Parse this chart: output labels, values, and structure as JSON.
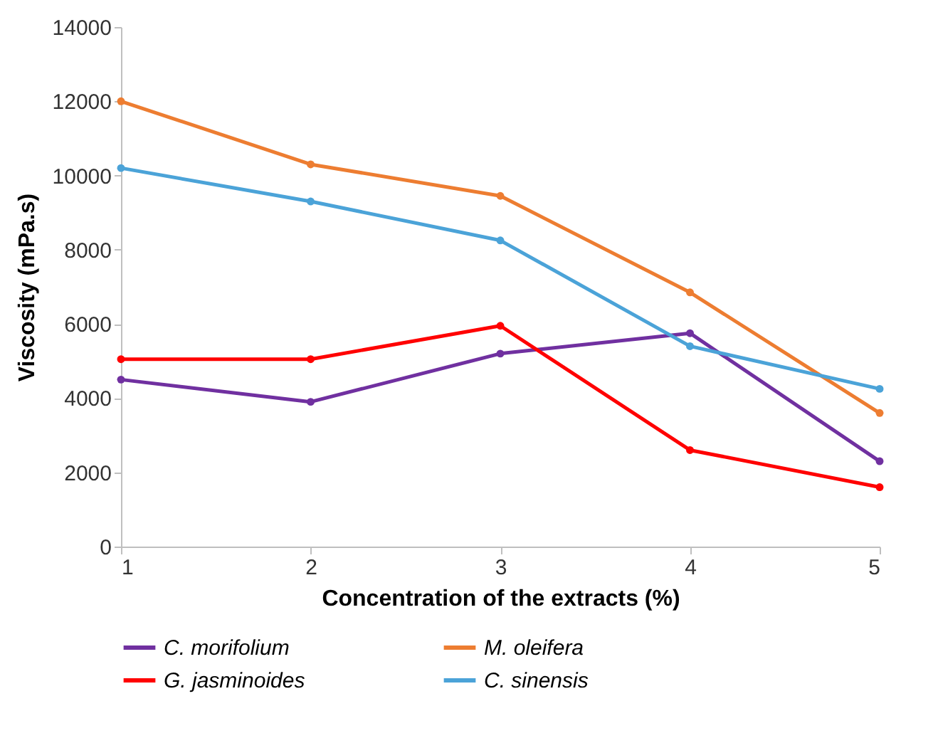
{
  "chart_data": {
    "type": "line",
    "xlabel": "Concentration of the extracts (%)",
    "ylabel": "Viscosity (mPa.s)",
    "x": [
      1,
      2,
      3,
      4,
      5
    ],
    "xlim": [
      1,
      5
    ],
    "xticks": [
      1,
      2,
      3,
      4,
      5
    ],
    "ylim": [
      0,
      14000
    ],
    "yticks": [
      0,
      2000,
      4000,
      6000,
      8000,
      10000,
      12000,
      14000
    ],
    "series": [
      {
        "name": "C. morifolium",
        "color": "#7030a0",
        "values": [
          4500,
          3900,
          5200,
          5750,
          2300
        ]
      },
      {
        "name": "M. oleifera",
        "color": "#ed7d31",
        "values": [
          12000,
          10300,
          9450,
          6850,
          3600
        ]
      },
      {
        "name": "G. jasminoides",
        "color": "#ff0000",
        "values": [
          5050,
          5050,
          5950,
          2600,
          1600
        ]
      },
      {
        "name": "C. sinensis",
        "color": "#4ba3d8",
        "values": [
          10200,
          9300,
          8250,
          5400,
          4250
        ]
      }
    ],
    "grid": false,
    "legend": "bottom",
    "marker": "circle",
    "line_style": "solid"
  }
}
